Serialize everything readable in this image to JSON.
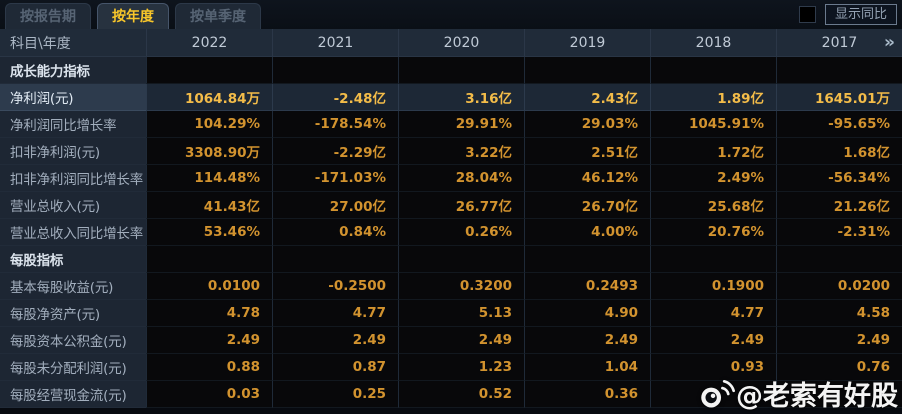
{
  "tabs": [
    {
      "label": "按报告期",
      "active": false
    },
    {
      "label": "按年度",
      "active": true
    },
    {
      "label": "按单季度",
      "active": false
    }
  ],
  "controls": {
    "show_yoy_label": "显示同比",
    "checkbox_checked": false
  },
  "table": {
    "corner_header": "科目\\年度",
    "year_columns": [
      "2022",
      "2021",
      "2020",
      "2019",
      "2018",
      "2017"
    ],
    "pager_icon": "»",
    "rows": [
      {
        "type": "section",
        "label": "成长能力指标",
        "highlight": false,
        "values": [
          "",
          "",
          "",
          "",
          "",
          ""
        ]
      },
      {
        "type": "data",
        "label": "净利润(元)",
        "highlight": true,
        "values": [
          "1064.84万",
          "-2.48亿",
          "3.16亿",
          "2.43亿",
          "1.89亿",
          "1645.01万"
        ]
      },
      {
        "type": "data",
        "label": "净利润同比增长率",
        "highlight": false,
        "values": [
          "104.29%",
          "-178.54%",
          "29.91%",
          "29.03%",
          "1045.91%",
          "-95.65%"
        ]
      },
      {
        "type": "data",
        "label": "扣非净利润(元)",
        "highlight": false,
        "values": [
          "3308.90万",
          "-2.29亿",
          "3.22亿",
          "2.51亿",
          "1.72亿",
          "1.68亿"
        ]
      },
      {
        "type": "data",
        "label": "扣非净利润同比增长率",
        "highlight": false,
        "values": [
          "114.48%",
          "-171.03%",
          "28.04%",
          "46.12%",
          "2.49%",
          "-56.34%"
        ]
      },
      {
        "type": "data",
        "label": "营业总收入(元)",
        "highlight": false,
        "values": [
          "41.43亿",
          "27.00亿",
          "26.77亿",
          "26.70亿",
          "25.68亿",
          "21.26亿"
        ]
      },
      {
        "type": "data",
        "label": "营业总收入同比增长率",
        "highlight": false,
        "values": [
          "53.46%",
          "0.84%",
          "0.26%",
          "4.00%",
          "20.76%",
          "-2.31%"
        ]
      },
      {
        "type": "section",
        "label": "每股指标",
        "highlight": false,
        "values": [
          "",
          "",
          "",
          "",
          "",
          ""
        ]
      },
      {
        "type": "data",
        "label": "基本每股收益(元)",
        "highlight": false,
        "values": [
          "0.0100",
          "-0.2500",
          "0.3200",
          "0.2493",
          "0.1900",
          "0.0200"
        ]
      },
      {
        "type": "data",
        "label": "每股净资产(元)",
        "highlight": false,
        "values": [
          "4.78",
          "4.77",
          "5.13",
          "4.90",
          "4.77",
          "4.58"
        ]
      },
      {
        "type": "data",
        "label": "每股资本公积金(元)",
        "highlight": false,
        "values": [
          "2.49",
          "2.49",
          "2.49",
          "2.49",
          "2.49",
          "2.49"
        ]
      },
      {
        "type": "data",
        "label": "每股未分配利润(元)",
        "highlight": false,
        "values": [
          "0.88",
          "0.87",
          "1.23",
          "1.04",
          "0.93",
          "0.76"
        ]
      },
      {
        "type": "data",
        "label": "每股经营现金流(元)",
        "highlight": false,
        "values": [
          "0.03",
          "0.25",
          "0.52",
          "0.36",
          "",
          ""
        ]
      }
    ]
  },
  "watermark": {
    "handle": "@老索有好股",
    "icon": "weibo-icon"
  },
  "colors": {
    "accent_yellow": "#f8c62a",
    "value_orange": "#d2932f",
    "highlight_gold": "#f3bc49",
    "header_bg": "#202b39",
    "label_bg": "#1d2633",
    "highlight_row_bg": "#1d2836"
  }
}
